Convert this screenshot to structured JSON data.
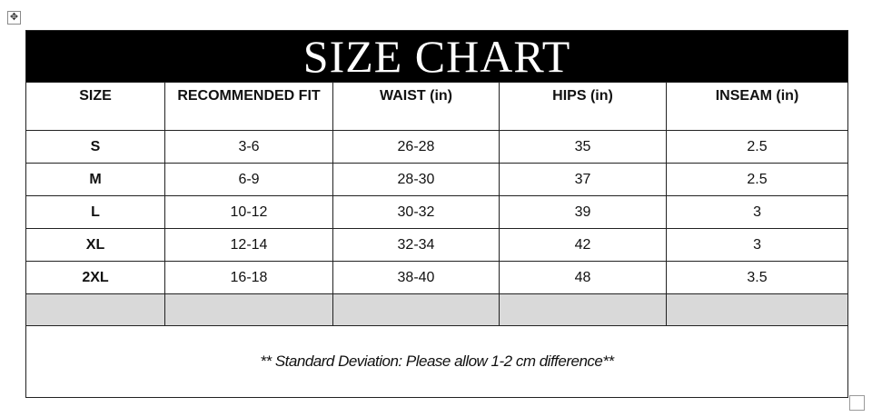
{
  "title": "SIZE CHART",
  "columns": [
    "SIZE",
    "RECOMMENDED FIT",
    "WAIST (in)",
    "HIPS (in)",
    "INSEAM (in)"
  ],
  "rows": [
    [
      "S",
      "3-6",
      "26-28",
      "35",
      "2.5"
    ],
    [
      "M",
      "6-9",
      "28-30",
      "37",
      "2.5"
    ],
    [
      "L",
      "10-12",
      "30-32",
      "39",
      "3"
    ],
    [
      "XL",
      "12-14",
      "32-34",
      "42",
      "3"
    ],
    [
      "2XL",
      "16-18",
      "38-40",
      "48",
      "3.5"
    ]
  ],
  "note": "** Standard Deviation: Please allow 1-2 cm difference**",
  "colors": {
    "title_bg": "#000000",
    "empty_row_bg": "#d9d9d9"
  },
  "icons": {
    "move": "move-arrows-icon",
    "resize": "resize-handle-icon"
  }
}
